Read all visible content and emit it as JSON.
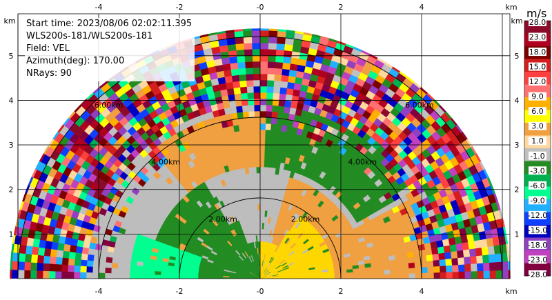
{
  "info": {
    "start_time": "Start time: 2023/08/06 02:02:11.395",
    "instrument": "WLS200s-181/WLS200s-181",
    "field": "Field: VEL",
    "azimuth": "Azimuth(deg): 170.00",
    "nrays": "NRays: 90"
  },
  "axes": {
    "x_unit": "km",
    "y_unit": "km",
    "x_ticks": [
      "-4",
      "-2",
      "-0",
      "2",
      "4"
    ],
    "y_ticks": [
      "1",
      "2",
      "3",
      "4",
      "5"
    ]
  },
  "range_rings": {
    "labels": [
      "2.00km",
      "2.00km",
      "4.00km",
      "4.00km",
      "6.00km",
      "6.00km"
    ]
  },
  "colorbar": {
    "unit": "m/s",
    "labels": [
      "28.0",
      "23.0",
      "18.0",
      "15.0",
      "12.0",
      "9.0",
      "6.0",
      "3.0",
      "1.0",
      "-1.0",
      "-3.0",
      "-6.0",
      "-9.0",
      "-12.0",
      "-15.0",
      "-18.0",
      "-23.0",
      "-28.0"
    ],
    "colors": [
      "#8b0a2a",
      "#b00020",
      "#7a0000",
      "#d41e1e",
      "#ff4040",
      "#ff7070",
      "#ffb000",
      "#ffff00",
      "#f0a040",
      "#ffd8a0",
      "#c0c0c0",
      "#228b22",
      "#00b050",
      "#00ff90",
      "#20b0ff",
      "#1040ff",
      "#0000c0",
      "#9040c0",
      "#c040c0",
      "#800040"
    ]
  },
  "colors": {
    "green": "#228b22",
    "gray": "#bdbdbd",
    "orange": "#f0a040",
    "yellow": "#ffd700",
    "teal": "#00ff90",
    "maroon": "#8b0a2a"
  }
}
